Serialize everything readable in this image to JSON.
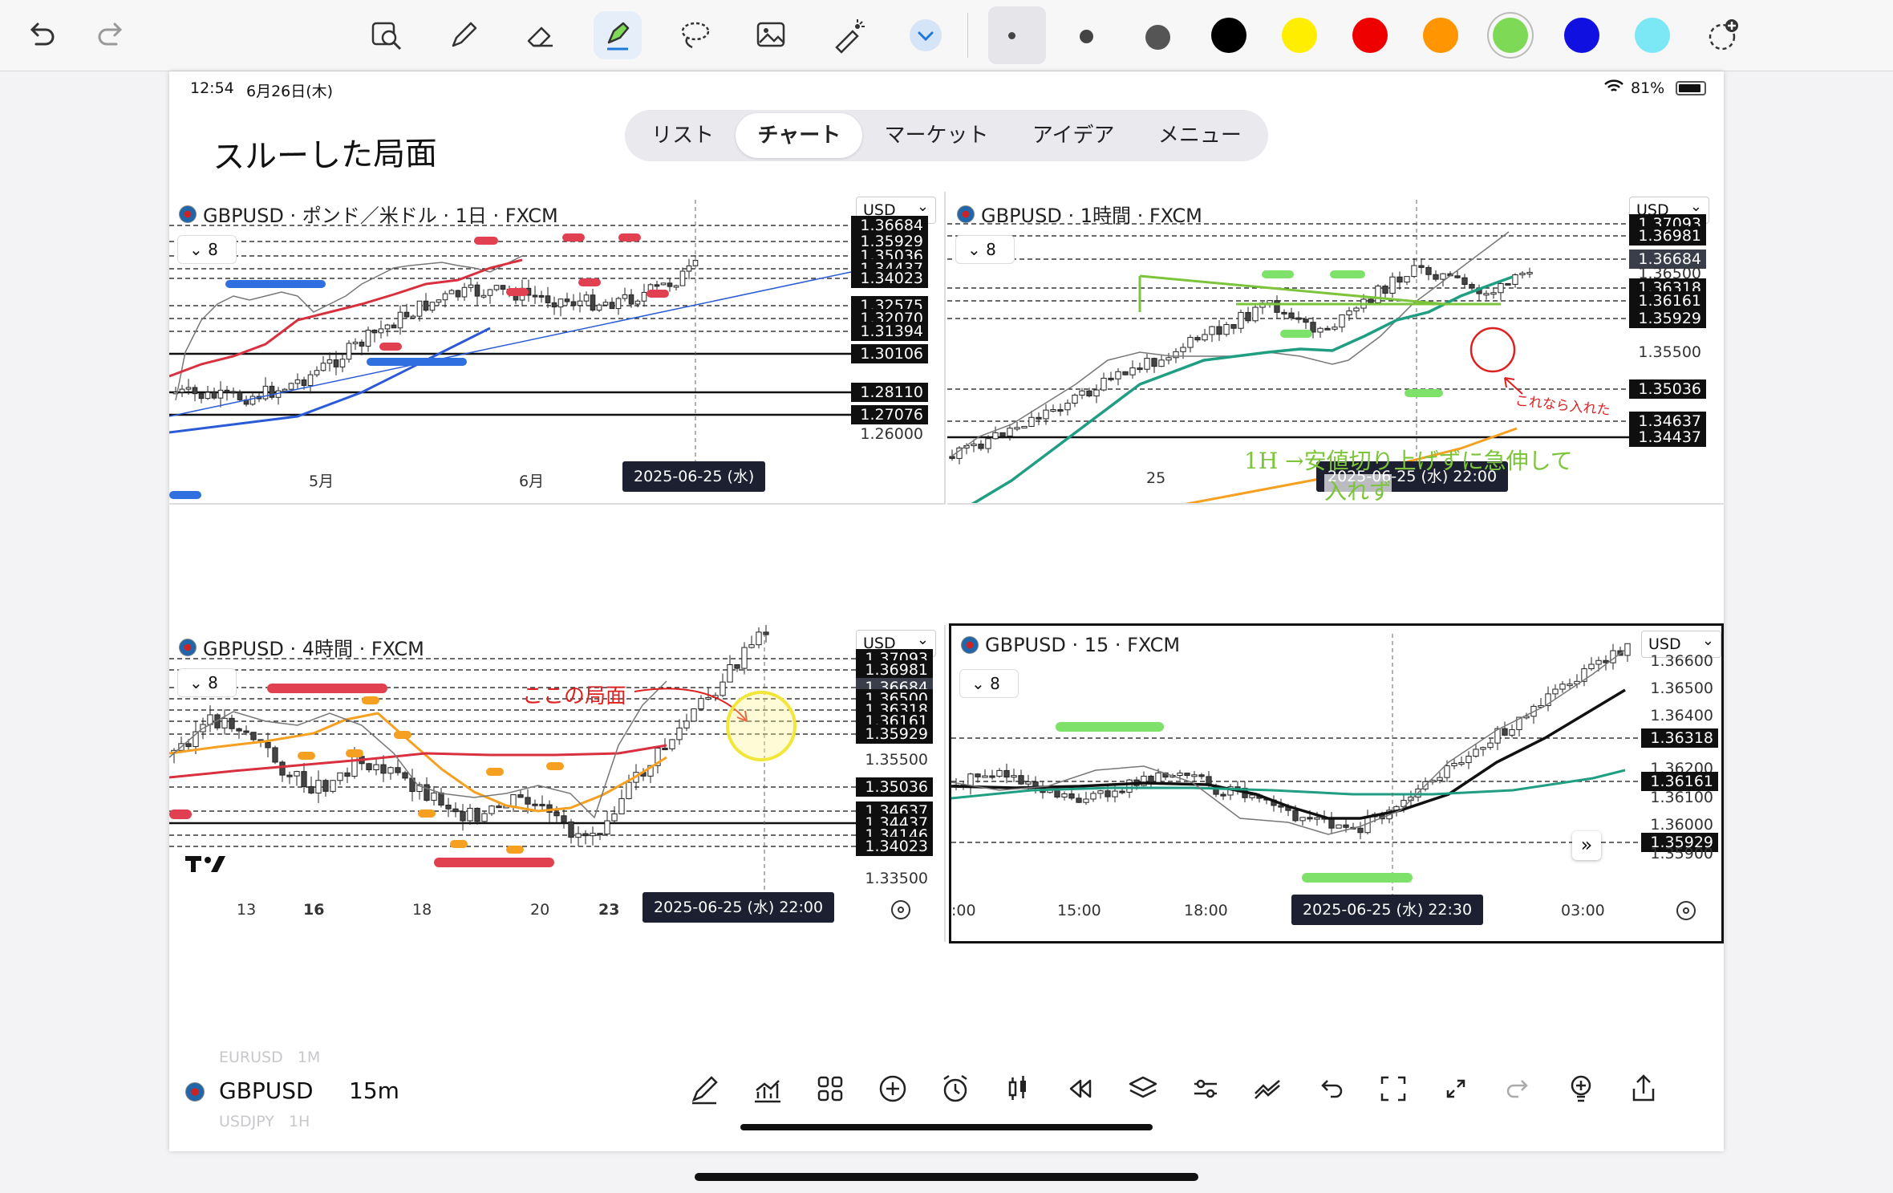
{
  "status": {
    "time": "12:54",
    "date": "6月26日(木)",
    "battery": "81%"
  },
  "tabs": [
    {
      "label": "リスト",
      "active": false
    },
    {
      "label": "チャート",
      "active": true
    },
    {
      "label": "マーケット",
      "active": false
    },
    {
      "label": "アイデア",
      "active": false
    },
    {
      "label": "メニュー",
      "active": false
    }
  ],
  "note_title": "スルーした局面",
  "panels": [
    {
      "title": "GBPUSD · ポンド／米ドル · 1日 · FXCM",
      "currency": "USD",
      "indicator_count": "8",
      "price_labels": [
        {
          "text": "1.36684",
          "style": "black"
        },
        {
          "text": "1.35929",
          "style": "black"
        },
        {
          "text": "1.35036",
          "style": "black"
        },
        {
          "text": "1.34437",
          "style": "black"
        },
        {
          "text": "1.34023",
          "style": "black"
        },
        {
          "text": "1.32575",
          "style": "black"
        },
        {
          "text": "1.32070",
          "style": "black"
        },
        {
          "text": "1.31394",
          "style": "black"
        },
        {
          "text": "1.30106",
          "style": "black"
        },
        {
          "text": "1.28110",
          "style": "black"
        },
        {
          "text": "1.27076",
          "style": "black"
        },
        {
          "text": "1.26000",
          "style": "plain"
        }
      ],
      "x_labels": [
        "5月",
        "6月"
      ],
      "crosshair_date": "2025-06-25 (水)"
    },
    {
      "title": "GBPUSD · 1時間 · FXCM",
      "currency": "USD",
      "indicator_count": "8",
      "price_labels": [
        {
          "text": "1.37093",
          "style": "black"
        },
        {
          "text": "1.36981",
          "style": "black"
        },
        {
          "text": "1.36684",
          "style": "gray"
        },
        {
          "text": "1.36500",
          "style": "plain"
        },
        {
          "text": "1.36318",
          "style": "black"
        },
        {
          "text": "1.36161",
          "style": "black"
        },
        {
          "text": "1.35929",
          "style": "black"
        },
        {
          "text": "1.35500",
          "style": "plain"
        },
        {
          "text": "1.35036",
          "style": "black"
        },
        {
          "text": "1.34637",
          "style": "black"
        },
        {
          "text": "1.34437",
          "style": "black"
        }
      ],
      "x_labels": [
        "25"
      ],
      "crosshair_date": "2025-06-25 (水)   22:00",
      "annotations": {
        "circle_note": "これなら入れた",
        "main_note_1": "1H →安値切り上げずに急伸して",
        "main_note_2": "入れず"
      }
    },
    {
      "title": "GBPUSD · 4時間 · FXCM",
      "currency": "USD",
      "indicator_count": "8",
      "price_labels": [
        {
          "text": "1.37093",
          "style": "black"
        },
        {
          "text": "1.36981",
          "style": "black"
        },
        {
          "text": "1.36684",
          "style": "gray"
        },
        {
          "text": "1.36500",
          "style": "black"
        },
        {
          "text": "1.36318",
          "style": "black"
        },
        {
          "text": "1.36161",
          "style": "black"
        },
        {
          "text": "1.35929",
          "style": "black"
        },
        {
          "text": "1.35500",
          "style": "plain"
        },
        {
          "text": "1.35036",
          "style": "black"
        },
        {
          "text": "1.34637",
          "style": "black"
        },
        {
          "text": "1.34437",
          "style": "black"
        },
        {
          "text": "1.34146",
          "style": "black"
        },
        {
          "text": "1.34023",
          "style": "black"
        },
        {
          "text": "1.33500",
          "style": "plain"
        }
      ],
      "x_labels": [
        "13",
        "16",
        "18",
        "20",
        "23"
      ],
      "crosshair_date": "2025-06-25 (水)   22:00",
      "annotations": {
        "arrow_note": "ここの局面"
      },
      "logo": "TV"
    },
    {
      "title": "GBPUSD · 15 · FXCM",
      "currency": "USD",
      "indicator_count": "8",
      "price_labels": [
        {
          "text": "1.36600",
          "style": "plain"
        },
        {
          "text": "1.36500",
          "style": "plain"
        },
        {
          "text": "1.36400",
          "style": "plain"
        },
        {
          "text": "1.36318",
          "style": "black"
        },
        {
          "text": "1.36200",
          "style": "plain"
        },
        {
          "text": "1.36161",
          "style": "black"
        },
        {
          "text": "1.36100",
          "style": "plain"
        },
        {
          "text": "1.36000",
          "style": "plain"
        },
        {
          "text": "1.35929",
          "style": "black"
        },
        {
          "text": "1.35900",
          "style": "plain"
        }
      ],
      "x_labels": [
        ":00",
        "15:00",
        "18:00",
        "03:00"
      ],
      "crosshair_date": "2025-06-25 (水)   22:30"
    }
  ],
  "bottom": {
    "symbol": "GBPUSD",
    "interval": "15m",
    "ghost_above": "EURUSD   1M",
    "ghost_below": "USDJPY   1H"
  }
}
